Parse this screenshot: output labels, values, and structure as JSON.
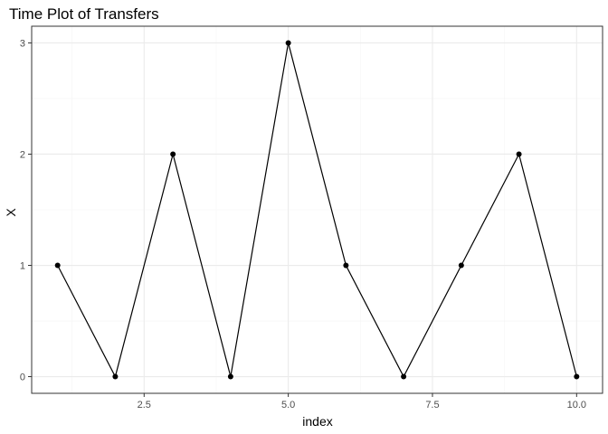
{
  "chart_data": {
    "type": "line",
    "title": "Time Plot of Transfers",
    "xlabel": "index",
    "ylabel": "X",
    "x": [
      1,
      2,
      3,
      4,
      5,
      6,
      7,
      8,
      9,
      10
    ],
    "series": [
      {
        "values": [
          1,
          0,
          2,
          0,
          3,
          1,
          0,
          1,
          2,
          0
        ]
      }
    ],
    "xlim": [
      0.55,
      10.45
    ],
    "ylim": [
      -0.15,
      3.15
    ],
    "x_ticks": [
      2.5,
      5.0,
      7.5,
      10.0
    ],
    "x_tick_labels": [
      "2.5",
      "5.0",
      "7.5",
      "10.0"
    ],
    "x_minor_ticks": [
      1.25,
      3.75,
      6.25,
      8.75
    ],
    "y_ticks": [
      0,
      1,
      2,
      3
    ],
    "y_tick_labels": [
      "0",
      "1",
      "2",
      "3"
    ],
    "y_minor_ticks": [
      0.5,
      1.5,
      2.5
    ],
    "grid": true,
    "legend": "none",
    "colors": {
      "line": "#000000",
      "point": "#000000",
      "panel_border": "#333333",
      "major_grid": "#ebebeb",
      "minor_grid": "#f5f5f5",
      "tick": "#333333"
    }
  }
}
